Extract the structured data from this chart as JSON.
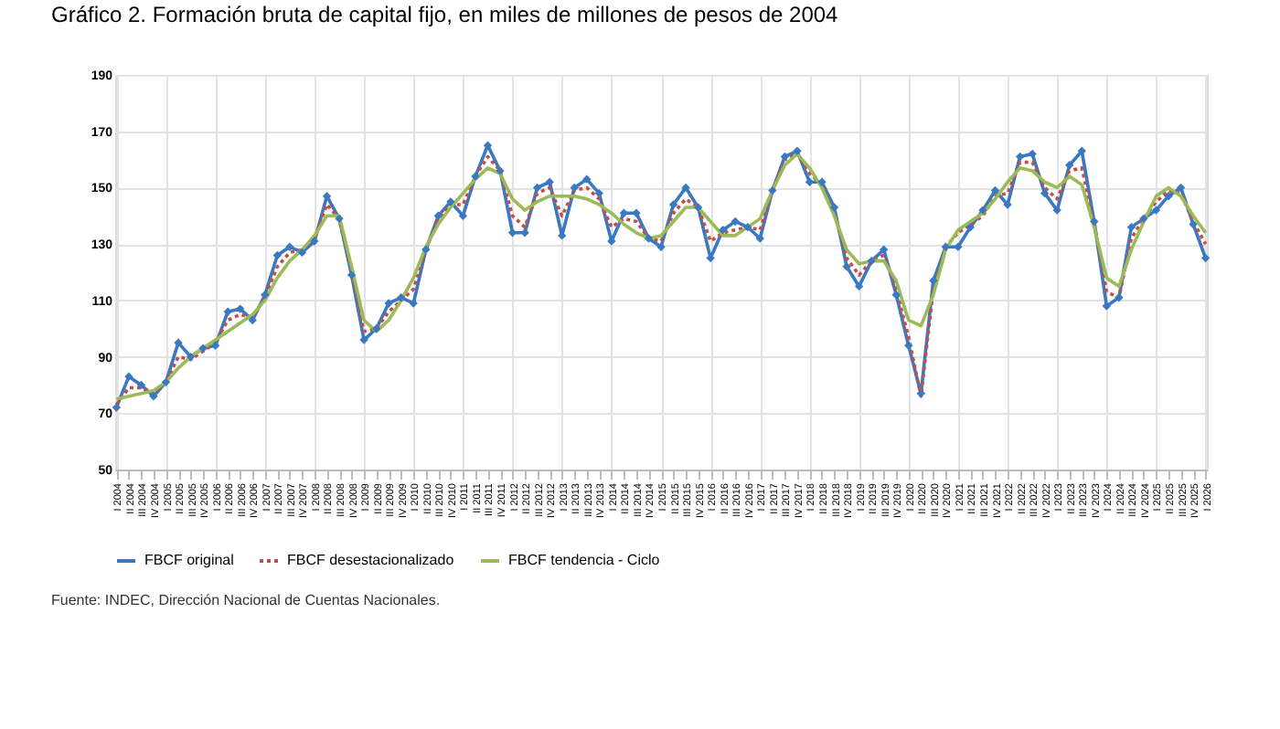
{
  "chart_data": {
    "type": "line",
    "title": "Gráfico 2.        Formación bruta de capital fijo, en miles de millones de pesos de 2004",
    "categories": [
      "I 2004",
      "II 2004",
      "III 2004",
      "IV 2004",
      "I 2005",
      "II 2005",
      "III 2005",
      "IV 2005",
      "I 2006",
      "II 2006",
      "III 2006",
      "IV 2006",
      "I 2007",
      "II 2007",
      "III 2007",
      "IV 2007",
      "I 2008",
      "II 2008",
      "III 2008",
      "IV 2008",
      "I 2009",
      "II 2009",
      "III 2009",
      "IV 2009",
      "I 2010",
      "II 2010",
      "III 2010",
      "IV 2010",
      "I 2011",
      "II 2011",
      "III 2011",
      "IV 2011",
      "I 2012",
      "II 2012",
      "III 2012",
      "IV 2012",
      "I 2013",
      "II 2013",
      "III 2013",
      "IV 2013",
      "I 2014",
      "II 2014",
      "III 2014",
      "IV 2014",
      "I 2015",
      "II 2015",
      "III 2015",
      "IV 2015",
      "I 2016",
      "II 2016",
      "III 2016",
      "IV 2016",
      "I 2017",
      "II 2017",
      "III 2017",
      "IV 2017",
      "I 2018",
      "II 2018",
      "III 2018",
      "IV 2018",
      "I 2019",
      "II 2019",
      "III 2019",
      "IV 2019",
      "I 2020",
      "II 2020",
      "III 2020",
      "IV 2020",
      "I 2021",
      "II 2021",
      "III 2021",
      "IV 2021",
      "I 2022",
      "II 2022",
      "III 2022",
      "IV 2022",
      "I 2023",
      "II 2023",
      "III 2023",
      "IV 2023",
      "I 2024",
      "II 2024",
      "III 2024",
      "IV 2024",
      "I 2025",
      "II 2025",
      "III 2025",
      "IV 2025",
      "I 2026"
    ],
    "series": [
      {
        "name": "FBCF original",
        "color": "#3a78c2",
        "marker": "diamond",
        "line_style": "solid",
        "values": [
          72,
          83,
          80,
          76,
          81,
          95,
          90,
          93,
          94,
          106,
          107,
          103,
          112,
          126,
          129,
          127,
          131,
          147,
          139,
          119,
          96,
          100,
          109,
          111,
          109,
          128,
          140,
          145,
          140,
          154,
          165,
          156,
          134,
          134,
          150,
          152,
          133,
          150,
          153,
          148,
          131,
          141,
          141,
          132,
          129,
          144,
          150,
          143,
          125,
          135,
          138,
          136,
          132,
          149,
          161,
          163,
          152,
          152,
          143,
          122,
          115,
          124,
          128,
          112,
          94,
          77,
          117,
          129,
          129,
          136,
          142,
          149,
          144,
          161,
          162,
          148,
          142,
          158,
          163,
          138,
          108,
          111,
          136,
          139,
          142,
          147,
          150,
          137,
          125
        ]
      },
      {
        "name": "FBCF desestacionalizado",
        "color": "#c0504d",
        "marker": "none",
        "line_style": "dotted",
        "values": [
          73,
          79,
          79,
          77,
          81,
          90,
          89,
          92,
          95,
          103,
          105,
          104,
          111,
          122,
          127,
          128,
          132,
          144,
          139,
          120,
          99,
          100,
          106,
          110,
          114,
          128,
          139,
          144,
          144,
          154,
          161,
          156,
          140,
          136,
          148,
          150,
          140,
          149,
          150,
          146,
          136,
          139,
          138,
          132,
          131,
          141,
          146,
          143,
          131,
          134,
          135,
          136,
          135,
          149,
          160,
          162,
          155,
          151,
          141,
          125,
          119,
          124,
          126,
          114,
          97,
          76,
          114,
          129,
          134,
          137,
          140,
          147,
          148,
          159,
          159,
          150,
          146,
          156,
          157,
          137,
          113,
          111,
          132,
          139,
          145,
          149,
          148,
          138,
          130
        ]
      },
      {
        "name": "FBCF tendencia - Ciclo",
        "color": "#9bbb59",
        "marker": "none",
        "line_style": "solid",
        "values": [
          75,
          76,
          77,
          78,
          81,
          86,
          90,
          93,
          96,
          99,
          102,
          105,
          110,
          118,
          124,
          128,
          133,
          140,
          140,
          122,
          103,
          99,
          103,
          110,
          118,
          129,
          137,
          143,
          148,
          153,
          157,
          155,
          146,
          142,
          145,
          147,
          147,
          147,
          146,
          144,
          141,
          137,
          134,
          132,
          133,
          138,
          143,
          143,
          138,
          133,
          133,
          136,
          139,
          149,
          158,
          162,
          157,
          150,
          140,
          128,
          123,
          124,
          124,
          117,
          103,
          101,
          112,
          128,
          135,
          138,
          141,
          146,
          152,
          157,
          156,
          152,
          150,
          154,
          151,
          136,
          118,
          115,
          128,
          138,
          147,
          150,
          147,
          140,
          134
        ]
      }
    ],
    "ylim": [
      50,
      190
    ],
    "yticks": [
      50,
      70,
      90,
      110,
      130,
      150,
      170,
      190
    ],
    "grid": true,
    "legend": "bottom",
    "annotations": [
      "Fuente: INDEC, Dirección Nacional de Cuentas Nacionales."
    ]
  }
}
